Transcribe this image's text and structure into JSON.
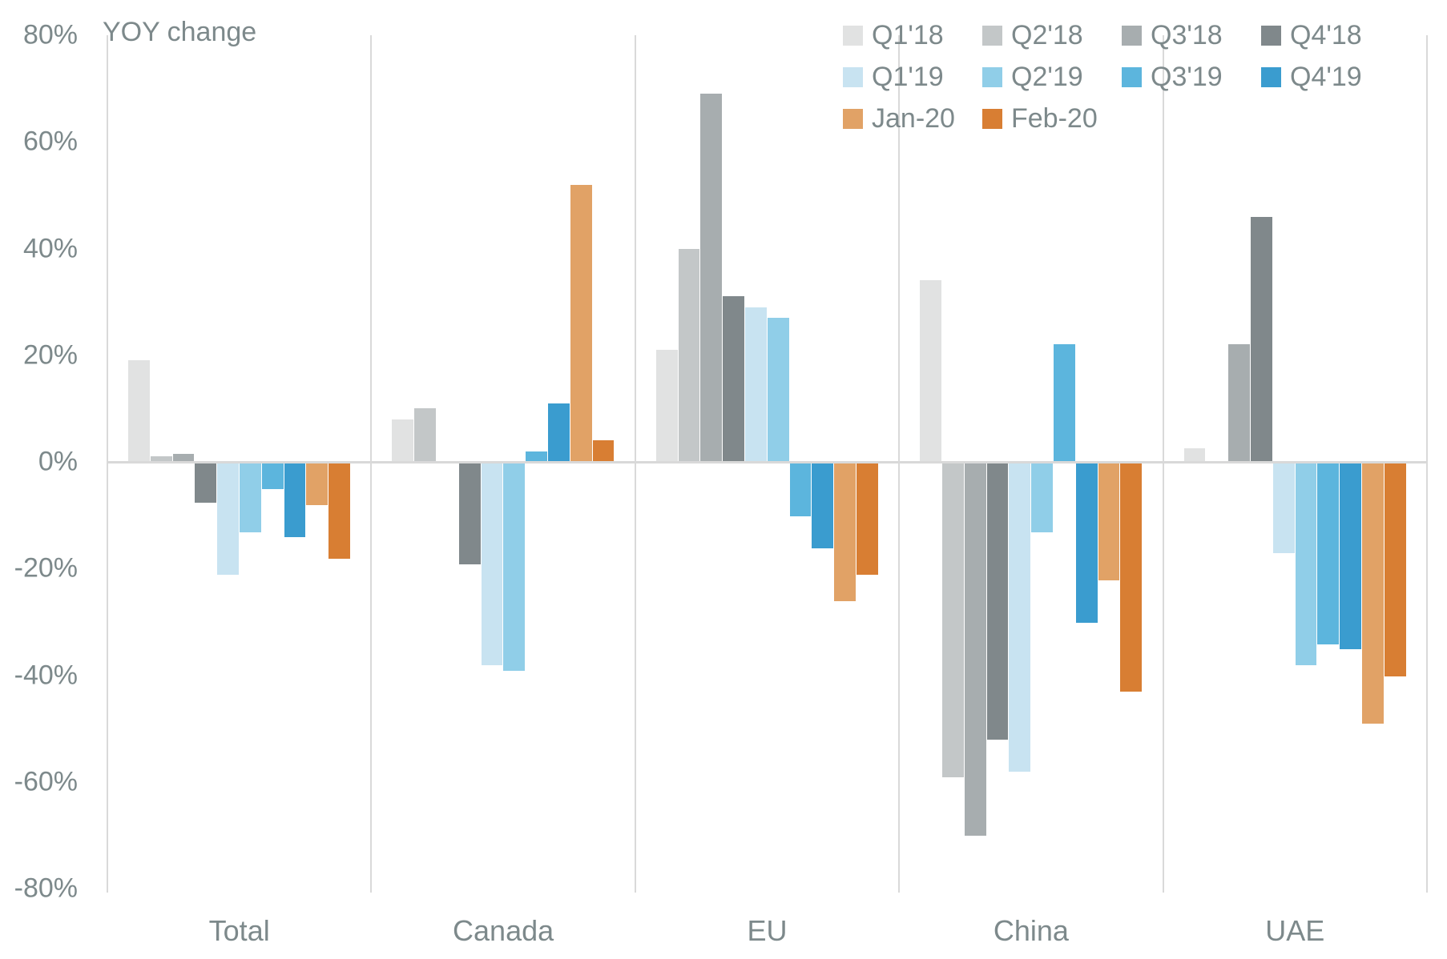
{
  "title": "YOY change",
  "chart_data": {
    "type": "bar",
    "title": "YOY change",
    "categories": [
      "Total",
      "Canada",
      "EU",
      "China",
      "UAE"
    ],
    "series": [
      {
        "name": "Q1'18",
        "color": "#e1e2e2",
        "values": [
          19,
          8,
          21,
          34,
          2.5
        ]
      },
      {
        "name": "Q2'18",
        "color": "#c3c7c8",
        "values": [
          1,
          10,
          40,
          -59,
          0
        ]
      },
      {
        "name": "Q3'18",
        "color": "#a7adaf",
        "values": [
          1.5,
          0,
          69,
          -70,
          22
        ]
      },
      {
        "name": "Q4'18",
        "color": "#80888b",
        "values": [
          -7.5,
          -19,
          31,
          -52,
          46
        ]
      },
      {
        "name": "Q1'19",
        "color": "#c8e3f1",
        "values": [
          -21,
          -38,
          29,
          -58,
          -17
        ]
      },
      {
        "name": "Q2'19",
        "color": "#90cee8",
        "values": [
          -13,
          -39,
          27,
          -13,
          -38
        ]
      },
      {
        "name": "Q3'19",
        "color": "#5cb5dd",
        "values": [
          -5,
          2,
          -10,
          22,
          -34
        ]
      },
      {
        "name": "Q4'19",
        "color": "#3a9ccf",
        "values": [
          -14,
          11,
          -16,
          -30,
          -35
        ]
      },
      {
        "name": "Jan-20",
        "color": "#e1a266",
        "values": [
          -8,
          52,
          -26,
          -22,
          -49
        ]
      },
      {
        "name": "Feb-20",
        "color": "#d87e33",
        "values": [
          -18,
          4,
          -21,
          -43,
          -40
        ]
      }
    ],
    "ylim": [
      -80,
      80
    ],
    "ytick_step": 20,
    "ytick_labels": [
      "80%",
      "60%",
      "40%",
      "20%",
      "0%",
      "-20%",
      "-40%",
      "-60%",
      "-80%"
    ],
    "grid": "vertical group separators + zero line only",
    "legend_position": "top-right",
    "legend_rows": [
      4,
      4,
      2
    ]
  },
  "style": {
    "text_color": "#7d898b",
    "line_color": "#d9d9d9",
    "background": "#ffffff"
  }
}
